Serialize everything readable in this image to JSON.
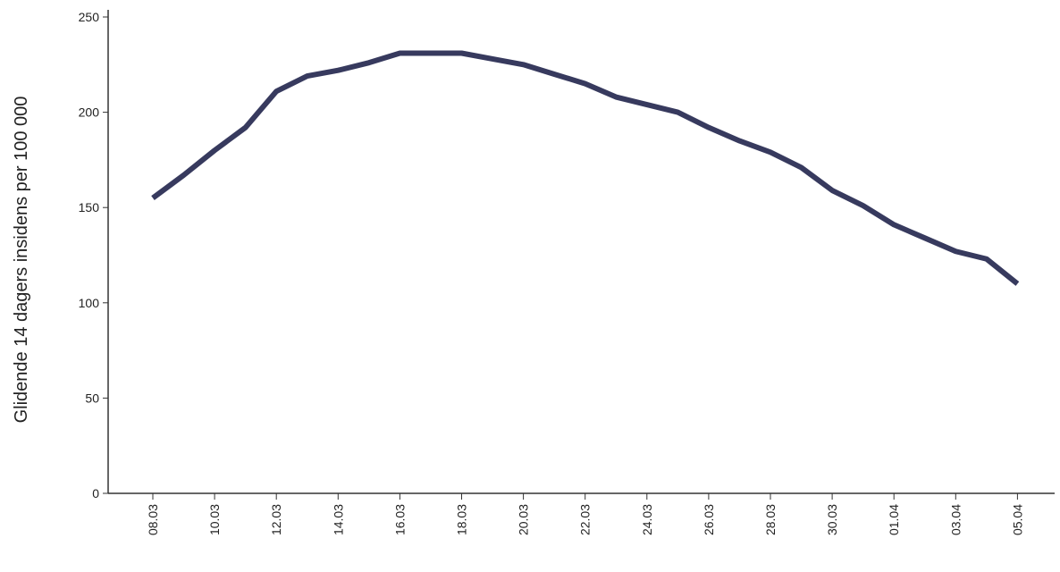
{
  "chart_data": {
    "type": "line",
    "title": "",
    "xlabel": "",
    "ylabel": "Glidende 14 dagers insidens per 100 000",
    "ylim": [
      0,
      250
    ],
    "yticks": [
      0,
      50,
      100,
      150,
      200,
      250
    ],
    "xtick_labels": [
      "08.03",
      "10.03",
      "12.03",
      "14.03",
      "16.03",
      "18.03",
      "20.03",
      "22.03",
      "24.03",
      "26.03",
      "28.03",
      "30.03",
      "01.04",
      "03.04",
      "05.04"
    ],
    "x": [
      "08.03",
      "09.03",
      "10.03",
      "11.03",
      "12.03",
      "13.03",
      "14.03",
      "15.03",
      "16.03",
      "17.03",
      "18.03",
      "19.03",
      "20.03",
      "21.03",
      "22.03",
      "23.03",
      "24.03",
      "25.03",
      "26.03",
      "27.03",
      "28.03",
      "29.03",
      "30.03",
      "31.03",
      "01.04",
      "02.04",
      "03.04",
      "04.04",
      "05.04"
    ],
    "series": [
      {
        "color": "#373a5e",
        "values": [
          155,
          167,
          180,
          192,
          211,
          219,
          222,
          226,
          231,
          231,
          231,
          228,
          225,
          220,
          215,
          208,
          204,
          200,
          192,
          185,
          179,
          171,
          159,
          151,
          141,
          134,
          127,
          123,
          110
        ]
      }
    ],
    "grid": false
  }
}
